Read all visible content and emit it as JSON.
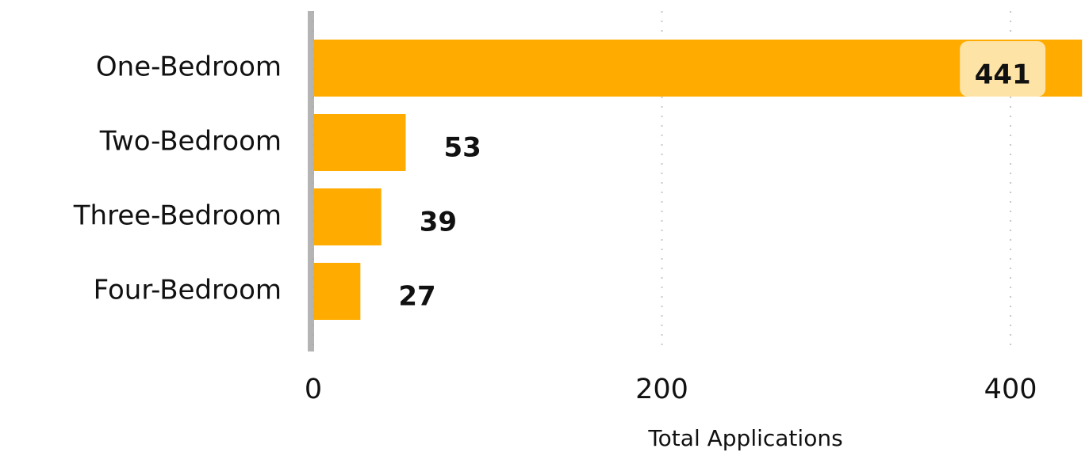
{
  "chart_data": {
    "type": "bar",
    "orientation": "horizontal",
    "categories": [
      "One-Bedroom",
      "Two-Bedroom",
      "Three-Bedroom",
      "Four-Bedroom"
    ],
    "values": [
      441,
      53,
      39,
      27
    ],
    "color": "#ffab00",
    "xlabel": "Total Applications",
    "xlim": [
      0,
      440
    ],
    "xticks": [
      0,
      200,
      400
    ],
    "grid": true
  }
}
